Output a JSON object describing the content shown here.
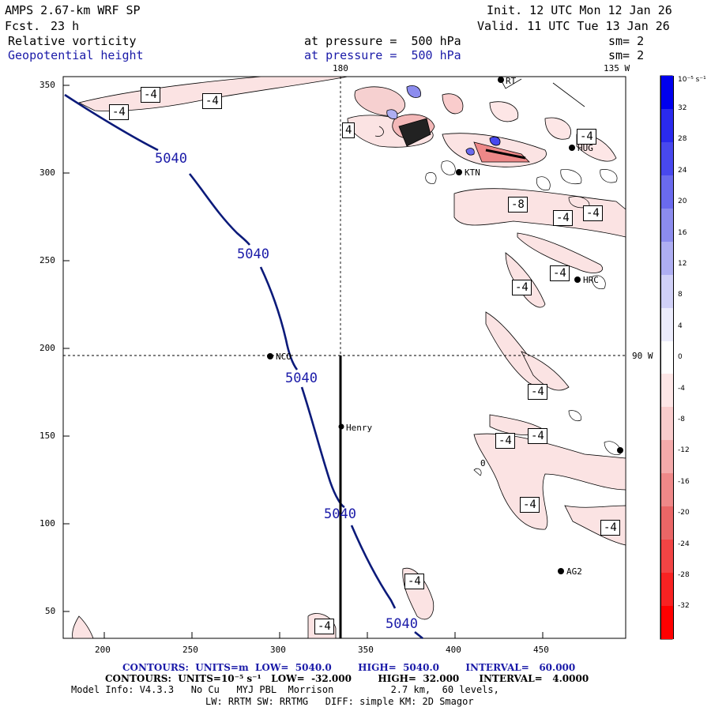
{
  "header": {
    "model": "AMPS 2.67-km WRF SP",
    "forecast_label": "Fcst.",
    "forecast_value": "23 h",
    "init": "Init. 12 UTC Mon 12 Jan 26",
    "valid": "Valid. 11 UTC Tue 13 Jan 26",
    "field1_name": "Relative vorticity",
    "field1_pressure": "at pressure =  500 hPa",
    "field1_sm": "sm= 2",
    "field2_name": "Geopotential height",
    "field2_pressure": "at pressure =  500 hPa",
    "field2_sm": "sm= 2"
  },
  "map_labels": {
    "lon_180": "180",
    "lon_135w": "135 W",
    "lon_90w": "90 W",
    "y_ticks": [
      "350",
      "300",
      "250",
      "200",
      "150",
      "100",
      "50"
    ],
    "x_ticks": [
      "200",
      "250",
      "300",
      "350",
      "400",
      "450"
    ],
    "stations": [
      "NCO",
      "Henry",
      "HRC",
      "AG2",
      "KTN",
      "HUG",
      "RT"
    ],
    "height_contour_label": "5040",
    "vort_labels": [
      "-4",
      "-4",
      "-4",
      "4",
      "-4",
      "-8",
      "-4",
      "-4",
      "-4",
      "-4",
      "-4",
      "-4",
      "-4",
      "-4",
      "-4",
      "-4",
      "-4",
      "0"
    ]
  },
  "colorbar": {
    "unit": "10⁻⁵ s⁻¹",
    "labels": [
      "32",
      "28",
      "24",
      "20",
      "16",
      "12",
      "8",
      "4",
      "0",
      "-4",
      "-8",
      "-12",
      "-16",
      "-20",
      "-24",
      "-28",
      "-32"
    ],
    "colors": [
      "#0000ee",
      "#2a2aee",
      "#4848ee",
      "#6a6aee",
      "#8c8cee",
      "#aeaef2",
      "#d0d0f7",
      "#ececfc",
      "#ffffff",
      "#fde6e6",
      "#f9cccc",
      "#f4aaaa",
      "#ef8888",
      "#ea6666",
      "#f24444",
      "#f82222",
      "#ff0000"
    ]
  },
  "footer": {
    "contours_height": "CONTOURS:  UNITS=m  LOW=  5040.0        HIGH=  5040.0        INTERVAL=   60.000",
    "contours_vort": "CONTOURS:  UNITS=10⁻⁵ s⁻¹   LOW=  -32.000        HIGH=  32.000      INTERVAL=   4.0000",
    "model_info": "Model Info: V4.3.3   No Cu   MYJ PBL  Morrison          2.7 km,  60 levels,",
    "model_info2": "LW: RRTM SW: RRTMG   DIFF: simple KM: 2D Smagor"
  }
}
